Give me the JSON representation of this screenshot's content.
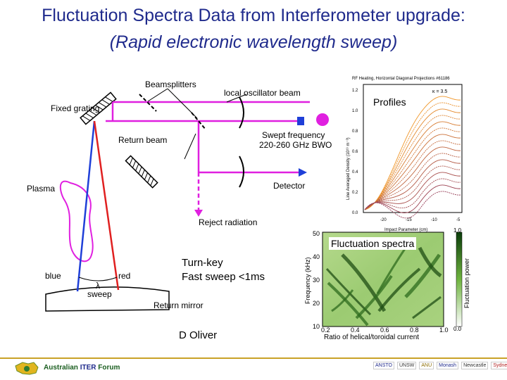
{
  "title": "Fluctuation Spectra Data from Interferometer upgrade:",
  "subtitle": "(Rapid electronic wavelength sweep)",
  "diagram": {
    "labels": {
      "beamsplitters": "Beamsplitters",
      "local_oscillator": "local oscillator beam",
      "fixed_grating": "Fixed grating",
      "return_beam": "Return beam",
      "swept_frequency": "Swept frequency",
      "frequency_range": "220-260 GHz BWO",
      "detector": "Detector",
      "plasma": "Plasma",
      "reject_radiation": "Reject radiation",
      "blue": "blue",
      "red": "red",
      "lambda": "λ",
      "sweep": "sweep",
      "return_mirror": "Return mirror"
    }
  },
  "notes": {
    "line1": "Turn-key",
    "line2": "Fast sweep <1ms",
    "author": "D Oliver"
  },
  "profiles_plot": {
    "box_label": "Profiles",
    "header": "RF Heating, Horizontal Diagonal Projections #61186",
    "legend": "κ = 3.5",
    "ylabel": "Line Averaged Density (10¹⁹ m⁻³)",
    "xlabel": "Impact Parameter (cm)",
    "yticks": [
      "1.2",
      "1.0",
      "0.8",
      "0.6",
      "0.4",
      "0.2",
      "0.0"
    ],
    "xticks": [
      "-20",
      "-15",
      "-10",
      "-5"
    ]
  },
  "spectra_plot": {
    "box_label": "Fluctuation spectra",
    "ylabel": "Frequency (kHz)",
    "xlabel": "Ratio of helical/toroidal current",
    "yticks": [
      "50",
      "40",
      "30",
      "20",
      "10"
    ],
    "xticks": [
      "0.2",
      "0.4",
      "0.6",
      "0.8",
      "1.0"
    ],
    "colorbar_label": "Fluctuation power",
    "colorbar_ticks": [
      "1.0",
      "0.0"
    ]
  },
  "footer": {
    "org_prefix": "Australian",
    "org_highlight": "ITER",
    "org_suffix": "Forum",
    "partner_logos": [
      "ANSTO",
      "UNSW",
      "ANU",
      "Monash",
      "Newcastle",
      "Sydney"
    ]
  },
  "colors": {
    "title": "#1f2a8c",
    "beam": "#e020e0",
    "blue_beam": "#1f3fd8",
    "red_beam": "#e02020",
    "footer_gold": "#c9a227"
  }
}
